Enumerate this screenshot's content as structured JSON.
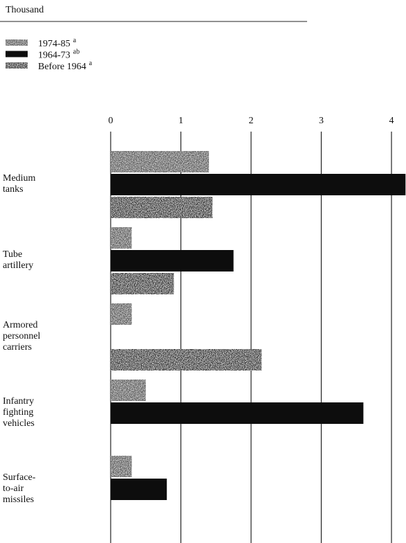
{
  "chart_data": {
    "type": "bar",
    "orientation": "horizontal",
    "title": "Thousand",
    "categories": [
      "Medium\ntanks",
      "Tube\nartillery",
      "Armored\npersonnel\ncarriers",
      "Infantry\nfighting\nvehicles",
      "Surface-\nto-air\nmissiles"
    ],
    "series": [
      {
        "name": "1974-85",
        "superscript": "a",
        "color": "#5a5a5a",
        "values": [
          1.4,
          0.3,
          0.3,
          0.5,
          0.3
        ]
      },
      {
        "name": "1964-73",
        "superscript": "ab",
        "color": "#0d0d0d",
        "values": [
          4.2,
          1.75,
          null,
          3.6,
          0.8
        ]
      },
      {
        "name": "Before 1964",
        "superscript": "a",
        "color": "#303030",
        "values": [
          1.45,
          0.9,
          2.15,
          null,
          null
        ]
      }
    ],
    "xlim": [
      0,
      4.2
    ],
    "xticks": [
      0,
      1,
      2,
      3,
      4
    ],
    "grid": true
  }
}
